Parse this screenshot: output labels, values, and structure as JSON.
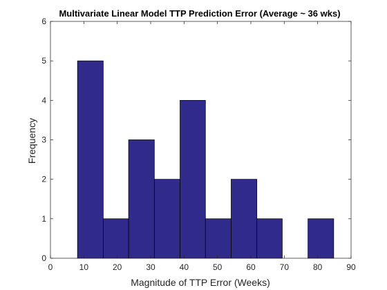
{
  "chart_data": {
    "type": "bar",
    "title": "Multivariate Linear Model TTP Prediction Error (Average ~ 36 wks)",
    "xlabel": "Magnitude of TTP Error (Weeks)",
    "ylabel": "Frequency",
    "xlim": [
      0,
      90
    ],
    "ylim": [
      0,
      6
    ],
    "xticks": [
      "0",
      "10",
      "20",
      "30",
      "40",
      "50",
      "60",
      "70",
      "80",
      "90"
    ],
    "yticks": [
      "0",
      "1",
      "2",
      "3",
      "4",
      "5",
      "6"
    ],
    "grid": false,
    "legend": "none",
    "bar_color": "#302b8a",
    "bar_edge_color": "#000000",
    "bins": [
      {
        "x0": 8.1,
        "x1": 15.8,
        "value": 5
      },
      {
        "x0": 15.8,
        "x1": 23.4,
        "value": 1
      },
      {
        "x0": 23.4,
        "x1": 31.1,
        "value": 3
      },
      {
        "x0": 31.1,
        "x1": 38.8,
        "value": 2
      },
      {
        "x0": 38.8,
        "x1": 46.4,
        "value": 4
      },
      {
        "x0": 46.4,
        "x1": 54.1,
        "value": 1
      },
      {
        "x0": 54.1,
        "x1": 61.8,
        "value": 2
      },
      {
        "x0": 61.8,
        "x1": 69.4,
        "value": 1
      },
      {
        "x0": 69.4,
        "x1": 77.1,
        "value": 0
      },
      {
        "x0": 77.1,
        "x1": 84.8,
        "value": 1
      }
    ]
  }
}
